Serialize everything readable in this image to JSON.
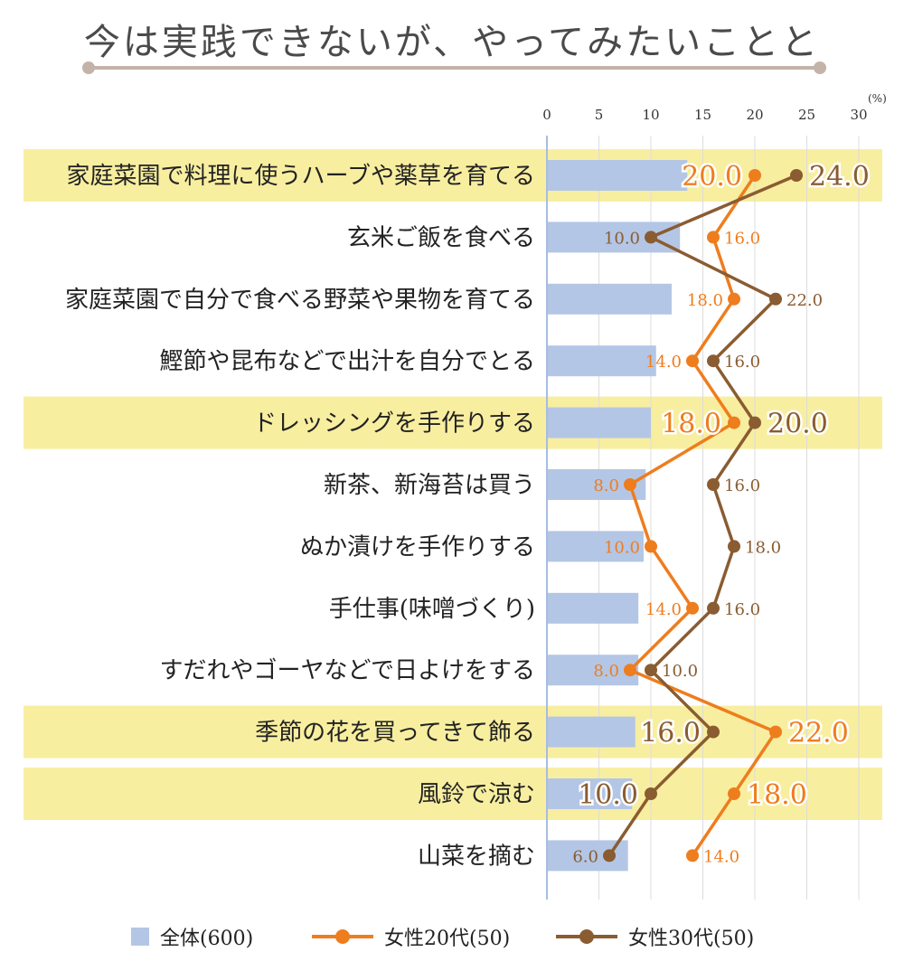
{
  "title": "今は実践できないが、やってみたいことと",
  "unit": "(%)",
  "colors": {
    "all": "#b4c6e5",
    "f20": "#ee7d1e",
    "f30": "#8a5c31",
    "highlight": "#f8eea0",
    "axis": "#a7bce0",
    "grid": "#dcdcdc",
    "title_rule": "#c3b3a9"
  },
  "legend": {
    "all": "全体(600)",
    "f20": "女性20代(50)",
    "f30": "女性30代(50)"
  },
  "chart_data": {
    "type": "bar",
    "orientation": "horizontal",
    "combo": "bar + line",
    "xlim": [
      0,
      30
    ],
    "ticks": [
      0,
      5,
      10,
      15,
      20,
      25,
      30
    ],
    "grid": true,
    "legend_position": "bottom",
    "categories": [
      "家庭菜園で料理に使うハーブや薬草を育てる",
      "玄米ご飯を食べる",
      "家庭菜園で自分で食べる野菜や果物を育てる",
      "鰹節や昆布などで出汁を自分でとる",
      "ドレッシングを手作りする",
      "新茶、新海苔は買う",
      "ぬか漬けを手作りする",
      "手仕事(味噌づくり)",
      "すだれやゴーヤなどで日よけをする",
      "季節の花を買ってきて飾る",
      "風鈴で涼む",
      "山菜を摘む"
    ],
    "highlighted": [
      true,
      false,
      false,
      false,
      true,
      false,
      false,
      false,
      false,
      true,
      true,
      false
    ],
    "series": [
      {
        "name": "全体(600)",
        "key": "all",
        "kind": "bar",
        "values": [
          13.5,
          12.8,
          12.0,
          10.5,
          10.0,
          9.5,
          9.3,
          8.8,
          8.8,
          8.5,
          8.2,
          7.8
        ]
      },
      {
        "name": "女性20代(50)",
        "key": "f20",
        "kind": "line",
        "values": [
          20.0,
          16.0,
          18.0,
          14.0,
          18.0,
          8.0,
          10.0,
          14.0,
          8.0,
          22.0,
          18.0,
          14.0
        ],
        "labels": [
          "20.0",
          "16.0",
          "18.0",
          "14.0",
          "18.0",
          "8.0",
          "10.0",
          "14.0",
          "8.0",
          "22.0",
          "18.0",
          "14.0"
        ]
      },
      {
        "name": "女性30代(50)",
        "key": "f30",
        "kind": "line",
        "values": [
          24.0,
          10.0,
          22.0,
          16.0,
          20.0,
          16.0,
          18.0,
          16.0,
          10.0,
          16.0,
          10.0,
          6.0
        ],
        "labels": [
          "24.0",
          "10.0",
          "22.0",
          "16.0",
          "20.0",
          "16.0",
          "18.0",
          "16.0",
          "10.0",
          "16.0",
          "10.0",
          "6.0"
        ]
      }
    ]
  }
}
